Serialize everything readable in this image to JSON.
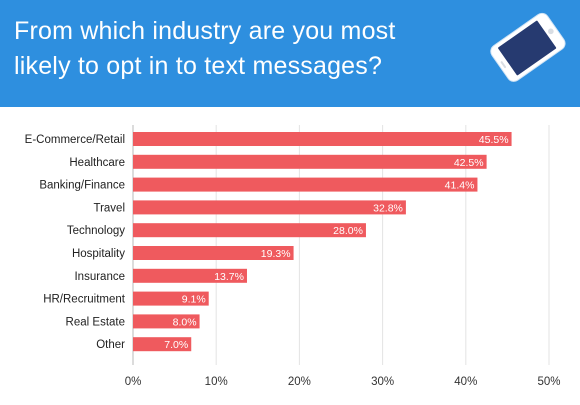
{
  "header": {
    "title": "From which industry are you most likely to opt in to text messages?",
    "background_color": "#2e8fdf",
    "icon": "smartphone-icon"
  },
  "chart_data": {
    "type": "bar",
    "orientation": "horizontal",
    "title": "",
    "xlabel": "",
    "ylabel": "",
    "categories": [
      "E-Commerce/Retail",
      "Healthcare",
      "Banking/Finance",
      "Travel",
      "Technology",
      "Hospitality",
      "Insurance",
      "HR/Recruitment",
      "Real Estate",
      "Other"
    ],
    "values": [
      45.5,
      42.5,
      41.4,
      32.8,
      28.0,
      19.3,
      13.7,
      9.1,
      8.0,
      7.0
    ],
    "data_labels": [
      "45.5%",
      "42.5%",
      "41.4%",
      "32.8%",
      "28.0%",
      "19.3%",
      "13.7%",
      "9.1%",
      "8.0%",
      "7.0%"
    ],
    "xlim": [
      0,
      50
    ],
    "x_ticks": [
      0,
      10,
      20,
      30,
      40,
      50
    ],
    "x_tick_labels": [
      "0%",
      "10%",
      "20%",
      "30%",
      "40%",
      "50%"
    ],
    "grid": "vertical",
    "legend": "none",
    "bar_color": "#ef5a5e",
    "label_color": "#ffffff"
  }
}
